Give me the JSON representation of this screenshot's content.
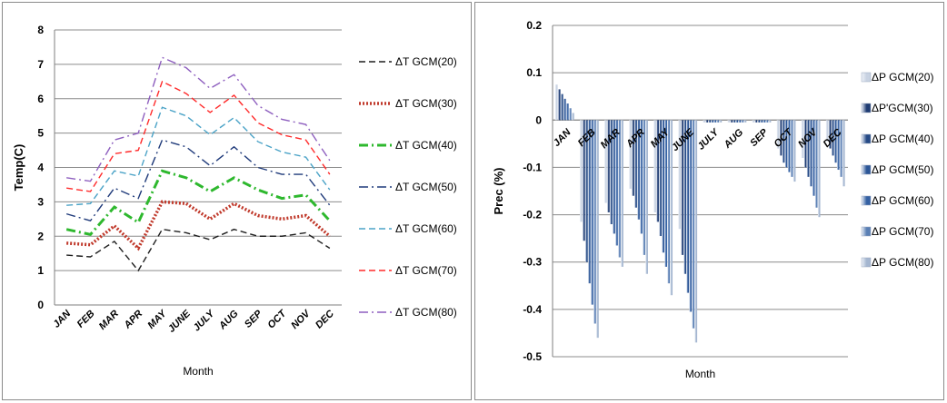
{
  "chart_data": [
    {
      "type": "line",
      "ylabel": "Temp(C)",
      "xlabel": "Month",
      "categories": [
        "JAN",
        "FEB",
        "MAR",
        "APR",
        "MAY",
        "JUNE",
        "JULY",
        "AUG",
        "SEP",
        "OCT",
        "NOV",
        "DEC"
      ],
      "ylim": [
        0,
        8
      ],
      "yticks": [
        0,
        1,
        2,
        3,
        4,
        5,
        6,
        7,
        8
      ],
      "grid": true,
      "legend_position": "right",
      "series": [
        {
          "name": "ΔT GCM(20)",
          "color": "#1f1f1f",
          "dash": "dashed",
          "values": [
            1.45,
            1.4,
            1.85,
            1.0,
            2.2,
            2.1,
            1.9,
            2.2,
            2.0,
            2.0,
            2.1,
            1.65
          ]
        },
        {
          "name": "ΔT GCM(30)",
          "color": "#c0392b",
          "dash": "dotted",
          "values": [
            1.8,
            1.75,
            2.3,
            1.65,
            3.0,
            2.95,
            2.5,
            2.95,
            2.6,
            2.5,
            2.6,
            2.0
          ]
        },
        {
          "name": "ΔT GCM(40)",
          "color": "#2eb82e",
          "dash": "dash-dot",
          "values": [
            2.2,
            2.05,
            2.85,
            2.4,
            3.9,
            3.7,
            3.3,
            3.7,
            3.35,
            3.1,
            3.2,
            2.45
          ]
        },
        {
          "name": "ΔT GCM(50)",
          "color": "#1f3a7a",
          "dash": "dash-dot",
          "values": [
            2.65,
            2.45,
            3.4,
            3.1,
            4.8,
            4.6,
            4.05,
            4.6,
            4.0,
            3.8,
            3.8,
            2.9
          ]
        },
        {
          "name": "ΔT GCM(60)",
          "color": "#4ba3c7",
          "dash": "dashed",
          "values": [
            2.9,
            2.95,
            3.9,
            3.75,
            5.75,
            5.5,
            4.95,
            5.45,
            4.75,
            4.45,
            4.3,
            3.35
          ]
        },
        {
          "name": "ΔT GCM(70)",
          "color": "#ff2a2a",
          "dash": "dashed",
          "values": [
            3.4,
            3.3,
            4.4,
            4.5,
            6.5,
            6.15,
            5.6,
            6.1,
            5.3,
            4.95,
            4.8,
            3.8
          ]
        },
        {
          "name": "ΔT GCM(80)",
          "color": "#8e5fbf",
          "dash": "dash-dot",
          "values": [
            3.7,
            3.6,
            4.8,
            5.0,
            7.2,
            6.9,
            6.3,
            6.7,
            5.8,
            5.4,
            5.25,
            4.2
          ]
        }
      ]
    },
    {
      "type": "bar",
      "ylabel": "Prec (%)",
      "xlabel": "Month",
      "categories": [
        "JAN",
        "FEB",
        "MAR",
        "APR",
        "MAY",
        "JUNE",
        "JULY",
        "AUG",
        "SEP",
        "OCT",
        "NOV",
        "DEC"
      ],
      "ylim": [
        -0.5,
        0.2
      ],
      "yticks": [
        "0.2",
        "0.1",
        "0",
        "-0.1",
        "-0.2",
        "-0.3",
        "-0.4",
        "-0.5"
      ],
      "grid": true,
      "legend_position": "right",
      "series": [
        {
          "name": "ΔP GCM(20)",
          "values": [
            0.075,
            -0.215,
            -0.175,
            -0.145,
            -0.195,
            -0.23,
            -0.005,
            -0.005,
            -0.005,
            -0.06,
            -0.08,
            -0.045
          ]
        },
        {
          "name": "ΔP'GCM(30)",
          "values": [
            0.065,
            -0.255,
            -0.195,
            -0.16,
            -0.215,
            -0.285,
            -0.005,
            -0.005,
            -0.005,
            -0.075,
            -0.1,
            -0.06
          ]
        },
        {
          "name": "ΔP GCM(40)",
          "values": [
            0.055,
            -0.3,
            -0.22,
            -0.185,
            -0.245,
            -0.325,
            -0.005,
            -0.005,
            -0.005,
            -0.09,
            -0.12,
            -0.075
          ]
        },
        {
          "name": "ΔP GCM(50)",
          "values": [
            0.045,
            -0.345,
            -0.24,
            -0.21,
            -0.28,
            -0.365,
            -0.005,
            -0.005,
            -0.005,
            -0.1,
            -0.14,
            -0.09
          ]
        },
        {
          "name": "ΔP GCM(60)",
          "values": [
            0.035,
            -0.39,
            -0.265,
            -0.24,
            -0.31,
            -0.405,
            -0.005,
            -0.005,
            -0.005,
            -0.11,
            -0.16,
            -0.105
          ]
        },
        {
          "name": "ΔP GCM(70)",
          "values": [
            0.025,
            -0.43,
            -0.29,
            -0.285,
            -0.345,
            -0.44,
            -0.005,
            -0.005,
            -0.005,
            -0.12,
            -0.185,
            -0.12
          ]
        },
        {
          "name": "ΔP GCM(80)",
          "values": [
            0.015,
            -0.46,
            -0.31,
            -0.325,
            -0.37,
            -0.47,
            -0.005,
            -0.005,
            -0.005,
            -0.13,
            -0.205,
            -0.14
          ]
        }
      ]
    }
  ]
}
